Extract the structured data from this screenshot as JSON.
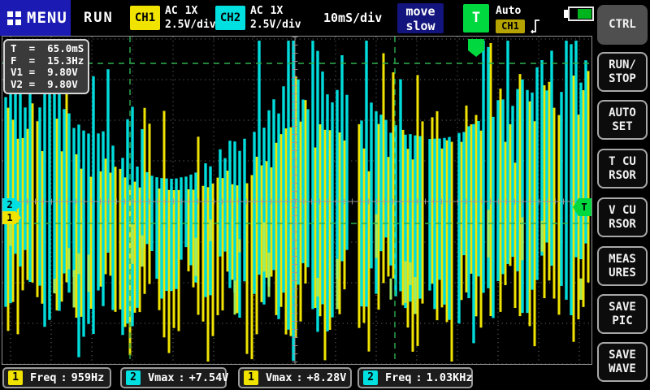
{
  "top_bar": {
    "menu_label": "MENU",
    "run_status": "RUN",
    "ch1": {
      "label": "CH1",
      "coupling": "AC",
      "attenuation": "1X",
      "scale": "2.5V/div",
      "color": "#f0e300"
    },
    "ch2": {
      "label": "CH2",
      "coupling": "AC",
      "attenuation": "1X",
      "scale": "2.5V/div",
      "color": "#00e0e0"
    },
    "timebase": "10mS/div",
    "move_mode": {
      "line1": "move",
      "line2": "slow"
    },
    "trigger": {
      "box_label": "T",
      "mode": "Auto",
      "source": "CH1",
      "edge": "rising-edge",
      "box_color": "#00d83f",
      "source_bg": "#b5a400"
    },
    "battery": {
      "level_percent": 62
    }
  },
  "measure_overlay": {
    "lines": [
      "T  =  65.0mS",
      "F  =  15.3Hz",
      "V1 =  9.80V",
      "V2 =  9.80V"
    ]
  },
  "plot": {
    "grid_color": "#8b948b",
    "axis_color": "#9a9a9a",
    "cursor_color": "#2fb050",
    "markers": {
      "ch2": {
        "label": "2",
        "color": "#00e0e0"
      },
      "ch1": {
        "label": "1",
        "color": "#f0e300"
      },
      "trigger_level": {
        "label": "T",
        "color": "#00d83f"
      },
      "trigger_position": {
        "color": "#00d83f"
      }
    }
  },
  "sidebar": {
    "buttons": [
      {
        "id": "ctrl",
        "line1": "CTRL"
      },
      {
        "id": "run-stop",
        "line1": "RUN/",
        "line2": "STOP"
      },
      {
        "id": "auto-set",
        "line1": "AUTO",
        "line2": "SET"
      },
      {
        "id": "t-cursor",
        "line1": "T CU",
        "line2": "RSOR"
      },
      {
        "id": "v-cursor",
        "line1": "V CU",
        "line2": "RSOR"
      },
      {
        "id": "measures",
        "line1": "MEAS",
        "line2": "URES"
      },
      {
        "id": "save-pic",
        "line1": "SAVE",
        "line2": "PIC"
      },
      {
        "id": "save-wave",
        "line1": "SAVE",
        "line2": "WAVE"
      }
    ]
  },
  "bottom_bar": {
    "separator": ":",
    "stats": [
      {
        "channel": "1",
        "channel_color": "#f0e300",
        "label": "Freq",
        "value": "959Hz"
      },
      {
        "channel": "2",
        "channel_color": "#00e0e0",
        "label": "Vmax",
        "value": "+7.54V"
      },
      {
        "channel": "1",
        "channel_color": "#f0e300",
        "label": "Vmax",
        "value": "+8.28V"
      },
      {
        "channel": "2",
        "channel_color": "#00e0e0",
        "label": "Freq",
        "value": "1.03KHz"
      }
    ]
  },
  "waveform": {
    "ch1_color": "#f0e300",
    "ch2_color": "#00dcdc",
    "overlap_color": "#a8f060",
    "seed": 20231107
  }
}
